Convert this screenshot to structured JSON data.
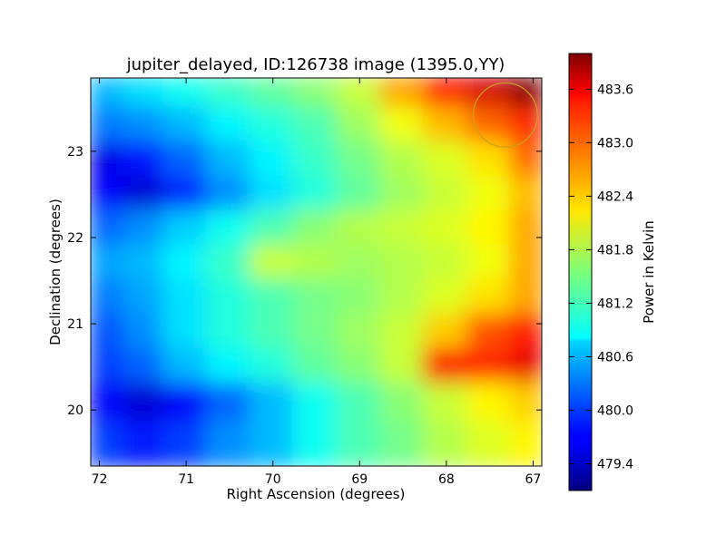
{
  "chart_data": {
    "type": "heatmap",
    "title": "jupiter_delayed, ID:126738 image (1395.0,YY)",
    "xlabel": "Right Ascension (degrees)",
    "ylabel": "Declination (degrees)",
    "x_axis_reversed": true,
    "xlim": [
      72.1,
      66.9
    ],
    "ylim": [
      19.35,
      23.85
    ],
    "xticks": [
      72,
      71,
      70,
      69,
      68,
      67
    ],
    "yticks": [
      20,
      21,
      22,
      23
    ],
    "colorbar": {
      "label": "Power in Kelvin",
      "colormap": "jet",
      "range": [
        479.1,
        484.0
      ],
      "ticks": [
        "479.4",
        "480.0",
        "480.6",
        "481.2",
        "481.8",
        "482.4",
        "483.0",
        "483.6"
      ]
    },
    "heatmap_grid": {
      "ra": [
        71.9,
        71.5,
        71.0,
        70.5,
        70.0,
        69.5,
        69.0,
        68.5,
        68.0,
        67.5,
        67.0
      ],
      "dec": [
        23.7,
        23.3,
        22.9,
        22.5,
        22.1,
        21.7,
        21.3,
        20.9,
        20.5,
        20.1,
        19.6
      ],
      "values_kelvin": [
        [
          480.6,
          480.8,
          481.0,
          481.2,
          481.4,
          481.6,
          481.9,
          482.6,
          483.3,
          483.6,
          484.0
        ],
        [
          480.3,
          480.4,
          480.6,
          480.9,
          481.1,
          481.3,
          481.7,
          482.1,
          482.5,
          482.9,
          483.2
        ],
        [
          479.6,
          479.8,
          480.2,
          480.6,
          480.9,
          481.2,
          481.5,
          481.8,
          482.0,
          482.3,
          482.9
        ],
        [
          479.7,
          479.5,
          479.9,
          480.4,
          480.8,
          481.1,
          481.4,
          481.7,
          481.9,
          482.1,
          482.5
        ],
        [
          480.2,
          480.4,
          480.7,
          481.0,
          481.3,
          481.6,
          481.8,
          481.9,
          482.0,
          482.2,
          482.6
        ],
        [
          480.5,
          480.6,
          480.9,
          481.2,
          481.9,
          481.8,
          481.7,
          481.8,
          481.9,
          482.1,
          482.6
        ],
        [
          480.3,
          480.5,
          480.8,
          481.1,
          481.3,
          481.5,
          481.6,
          481.8,
          482.0,
          482.3,
          482.6
        ],
        [
          480.1,
          480.4,
          480.8,
          481.1,
          481.3,
          481.5,
          481.7,
          481.9,
          482.4,
          483.0,
          483.3
        ],
        [
          480.0,
          480.2,
          480.6,
          480.9,
          481.1,
          481.4,
          481.6,
          481.9,
          483.4,
          483.2,
          483.5
        ],
        [
          479.7,
          479.5,
          479.7,
          480.2,
          480.6,
          481.0,
          481.3,
          481.6,
          481.9,
          482.2,
          482.4
        ],
        [
          480.0,
          479.8,
          480.0,
          480.4,
          480.6,
          481.0,
          481.3,
          481.5,
          481.8,
          482.0,
          482.2
        ]
      ]
    },
    "annotations": [
      {
        "shape": "circle",
        "ra": 67.32,
        "dec": 23.42,
        "radius_deg": 0.37,
        "color": "#c8a020"
      }
    ]
  }
}
